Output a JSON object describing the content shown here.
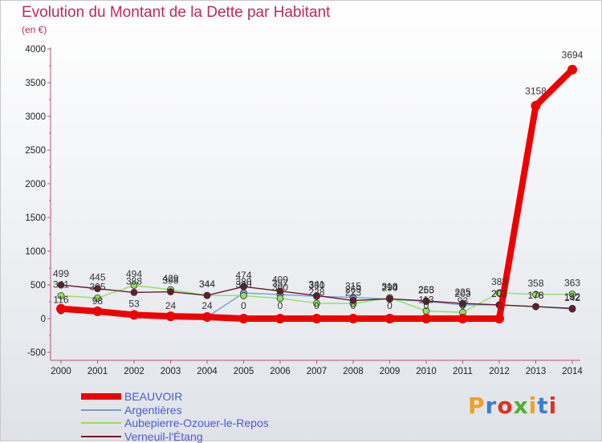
{
  "chart_data": {
    "type": "line",
    "title": "Evolution du Montant de la Dette par Habitant",
    "subtitle": "(en €)",
    "xlabel": "",
    "ylabel": "",
    "x": [
      "2000",
      "2001",
      "2002",
      "2003",
      "2004",
      "2005",
      "2006",
      "2007",
      "2008",
      "2009",
      "2010",
      "2011",
      "2012",
      "2013",
      "2014"
    ],
    "yticks": [
      "-500",
      "0",
      "500",
      "1000",
      "1500",
      "2000",
      "2500",
      "3000",
      "3500",
      "4000"
    ],
    "ylim": [
      -500,
      4000
    ],
    "grid": false,
    "legend_position": "bottom-left",
    "series": [
      {
        "name": "BEAUVOIR",
        "color": "#ee0000",
        "values": [
          146,
          108,
          55,
          34,
          24,
          0,
          0,
          0,
          0,
          0,
          0,
          0,
          0,
          3158,
          3694
        ],
        "labels": [
          "",
          "",
          "",
          "",
          "",
          "",
          "",
          "",
          "",
          "",
          "",
          "",
          "",
          "3158",
          "3694"
        ]
      },
      {
        "name": "Argentières",
        "color": "#6fa0d8",
        "values": [
          116,
          98,
          53,
          24,
          24,
          380,
          357,
          330,
          315,
          290,
          255,
          203,
          203,
          178,
          142
        ],
        "labels": [
          "116",
          "98",
          "53",
          "24",
          "24",
          "380",
          "357",
          "330",
          "315",
          "290",
          "255",
          "203",
          "203",
          "178",
          "142"
        ]
      },
      {
        "name": "Aubepierre-Ozouer-le-Repos",
        "color": "#90e060",
        "values": [
          341,
          305,
          494,
          429,
          344,
          340,
          300,
          228,
          223,
          310,
          113,
          93,
          383,
          358,
          363
        ],
        "labels": [
          "341",
          "305",
          "494",
          "429",
          "344",
          "340",
          "300",
          "228",
          "223",
          "310",
          "113",
          "93",
          "383",
          "358",
          "363"
        ]
      },
      {
        "name": "Verneuil-l'Étang",
        "color": "#6a1a2a",
        "values": [
          499,
          445,
          388,
          398,
          344,
          474,
          409,
          341,
          269,
          294,
          263,
          225,
          203,
          178,
          152
        ],
        "labels": [
          "499",
          "445",
          "388",
          "398",
          "344",
          "474",
          "409",
          "341",
          "269",
          "294",
          "263",
          "225",
          "203",
          "178",
          "152"
        ]
      }
    ],
    "zero_labels_beauvoir": [
      "0",
      "0",
      "0",
      "0",
      "0",
      "0",
      "0",
      "0"
    ]
  },
  "logo": {
    "text": "Proxiti"
  }
}
